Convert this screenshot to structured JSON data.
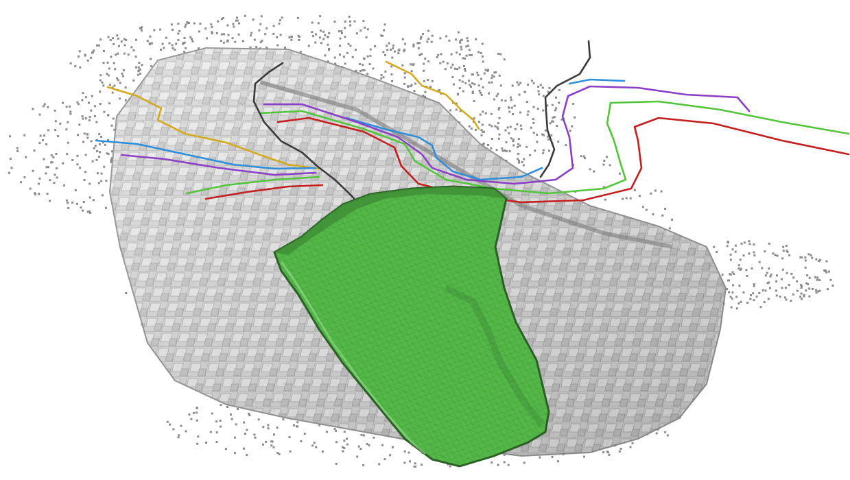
{
  "scene": {
    "background": "#ffffff",
    "colors": {
      "points": "#8a8a8a",
      "voxel_fill": "#d8d8d8",
      "voxel_edge": "#9a9a9a",
      "surface": "#52b646",
      "surface_mesh": "#3e9a34",
      "surface_dark": "#2f6a2a"
    },
    "curves": [
      {
        "name": "gold",
        "color": "#d4aa1c"
      },
      {
        "name": "blue",
        "color": "#2d8fdb"
      },
      {
        "name": "purple",
        "color": "#8a3fc6"
      },
      {
        "name": "green",
        "color": "#52c53a"
      },
      {
        "name": "red",
        "color": "#c41e1e"
      },
      {
        "name": "black",
        "color": "#3a3a3a"
      }
    ]
  }
}
